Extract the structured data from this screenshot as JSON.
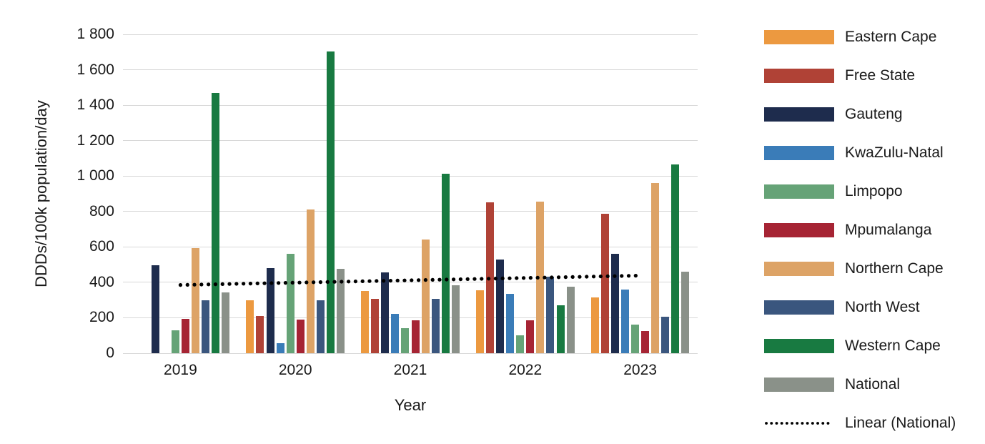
{
  "chart_data": {
    "type": "bar",
    "title": "",
    "xlabel": "Year",
    "ylabel": "DDDs/100k population/day",
    "ylim": [
      0,
      1800
    ],
    "ytick_step": 200,
    "ytick_labels": [
      "0",
      "200",
      "400",
      "600",
      "800",
      "1 000",
      "1 200",
      "1 400",
      "1 600",
      "1 800"
    ],
    "grid": true,
    "legend_position": "right",
    "categories": [
      "2019",
      "2020",
      "2021",
      "2022",
      "2023"
    ],
    "series": [
      {
        "name": "Eastern Cape",
        "color": "#EC9940",
        "values": [
          null,
          300,
          350,
          355,
          315
        ]
      },
      {
        "name": "Free State",
        "color": "#B04236",
        "values": [
          null,
          210,
          305,
          850,
          785
        ]
      },
      {
        "name": "Gauteng",
        "color": "#1E2C4D",
        "values": [
          495,
          480,
          455,
          530,
          560
        ]
      },
      {
        "name": "KwaZulu-Natal",
        "color": "#3A7CB8",
        "values": [
          null,
          55,
          220,
          335,
          360
        ]
      },
      {
        "name": "Limpopo",
        "color": "#66A377",
        "values": [
          130,
          560,
          140,
          100,
          160
        ]
      },
      {
        "name": "Mpumalanga",
        "color": "#A62434",
        "values": [
          195,
          190,
          185,
          185,
          125
        ]
      },
      {
        "name": "Northern Cape",
        "color": "#DDA366",
        "values": [
          595,
          810,
          640,
          855,
          960
        ]
      },
      {
        "name": "North West",
        "color": "#3A567E",
        "values": [
          300,
          300,
          305,
          430,
          205
        ]
      },
      {
        "name": "Western Cape",
        "color": "#187A41",
        "values": [
          1470,
          1705,
          1015,
          270,
          1065
        ]
      },
      {
        "name": "National",
        "color": "#8A9189",
        "values": [
          345,
          475,
          385,
          375,
          460
        ]
      }
    ],
    "trendline": {
      "name": "Linear (National)",
      "color": "#000000",
      "start_value": 385,
      "end_value": 438
    }
  }
}
